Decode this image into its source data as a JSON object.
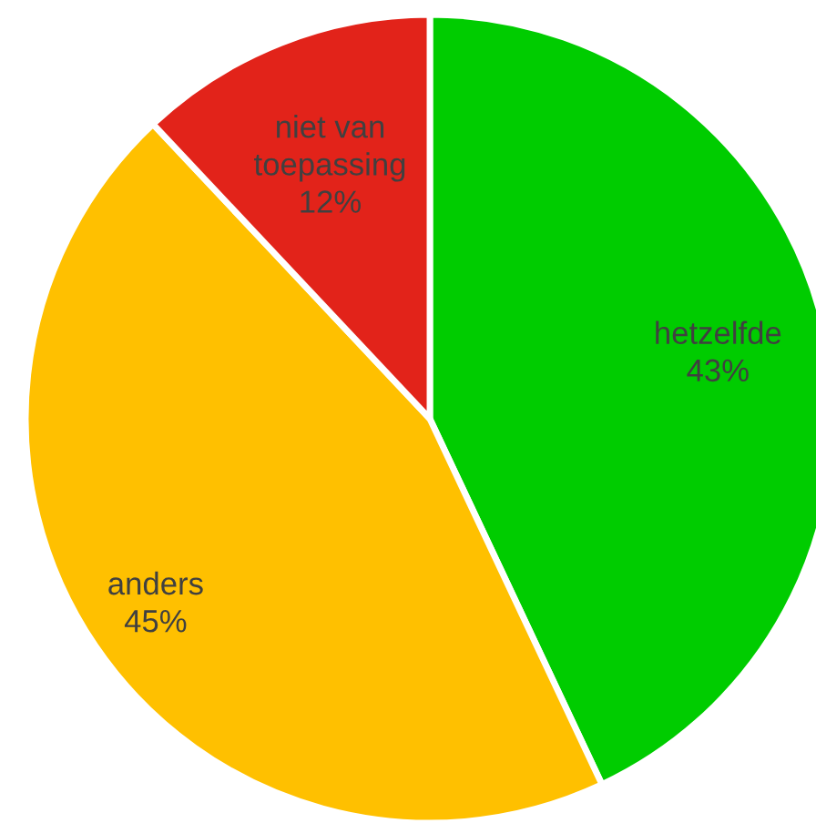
{
  "chart_data": {
    "type": "pie",
    "categories": [
      "hetzelfde",
      "anders",
      "niet van toepassing"
    ],
    "values": [
      43,
      45,
      12
    ],
    "colors": [
      "#00cc00",
      "#ffc000",
      "#e2231a"
    ],
    "value_labels": [
      "43%",
      "45%",
      "12%"
    ]
  }
}
